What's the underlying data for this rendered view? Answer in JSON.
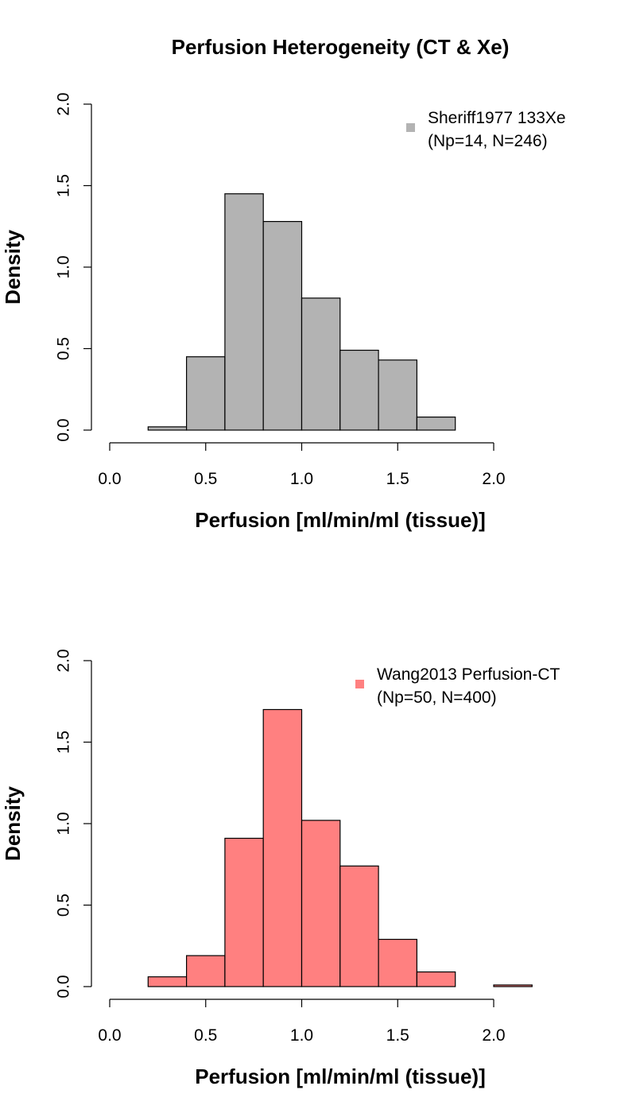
{
  "chart_data": [
    {
      "type": "bar",
      "title": "Perfusion Heterogeneity (CT & Xe)",
      "xlabel": "Perfusion [ml/min/ml (tissue)]",
      "ylabel": "Density",
      "xlim": [
        0,
        2
      ],
      "ylim": [
        0,
        2
      ],
      "x_ticks": [
        "0.0",
        "0.5",
        "1.0",
        "1.5",
        "2.0"
      ],
      "y_ticks": [
        "0.0",
        "0.5",
        "1.0",
        "1.5",
        "2.0"
      ],
      "fill_color": "#b3b3b3",
      "bins": [
        {
          "from": 0.2,
          "to": 0.4,
          "value": 0.02
        },
        {
          "from": 0.4,
          "to": 0.6,
          "value": 0.45
        },
        {
          "from": 0.6,
          "to": 0.8,
          "value": 1.45
        },
        {
          "from": 0.8,
          "to": 1.0,
          "value": 1.28
        },
        {
          "from": 1.0,
          "to": 1.2,
          "value": 0.81
        },
        {
          "from": 1.2,
          "to": 1.4,
          "value": 0.49
        },
        {
          "from": 1.4,
          "to": 1.6,
          "value": 0.43
        },
        {
          "from": 1.6,
          "to": 1.8,
          "value": 0.08
        }
      ],
      "legend": {
        "line1": "Sheriff1977 133Xe",
        "line2": "(Np=14, N=246)",
        "position": "top-right"
      }
    },
    {
      "type": "bar",
      "title": "",
      "xlabel": "Perfusion [ml/min/ml (tissue)]",
      "ylabel": "Density",
      "xlim": [
        0,
        2
      ],
      "ylim": [
        0,
        2
      ],
      "x_ticks": [
        "0.0",
        "0.5",
        "1.0",
        "1.5",
        "2.0"
      ],
      "y_ticks": [
        "0.0",
        "0.5",
        "1.0",
        "1.5",
        "2.0"
      ],
      "fill_color": "#ff8080",
      "bins": [
        {
          "from": 0.2,
          "to": 0.4,
          "value": 0.06
        },
        {
          "from": 0.4,
          "to": 0.6,
          "value": 0.19
        },
        {
          "from": 0.6,
          "to": 0.8,
          "value": 0.91
        },
        {
          "from": 0.8,
          "to": 1.0,
          "value": 1.7
        },
        {
          "from": 1.0,
          "to": 1.2,
          "value": 1.02
        },
        {
          "from": 1.2,
          "to": 1.4,
          "value": 0.74
        },
        {
          "from": 1.4,
          "to": 1.6,
          "value": 0.29
        },
        {
          "from": 1.6,
          "to": 1.8,
          "value": 0.09
        },
        {
          "from": 1.8,
          "to": 2.0,
          "value": 0.0
        },
        {
          "from": 2.0,
          "to": 2.2,
          "value": 0.01
        }
      ],
      "legend": {
        "line1": "Wang2013 Perfusion-CT",
        "line2": "(Np=50, N=400)",
        "position": "top-right"
      }
    }
  ]
}
